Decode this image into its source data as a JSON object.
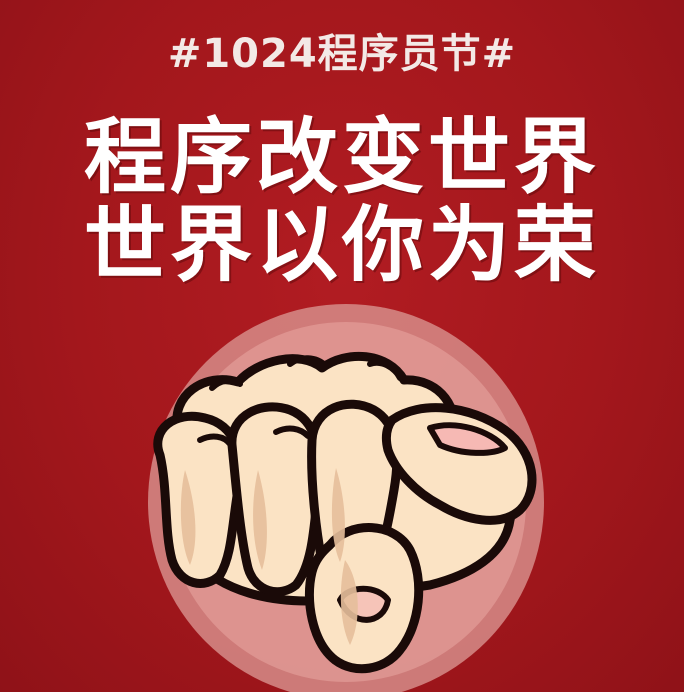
{
  "poster": {
    "hashtag": "#1024程序员节#",
    "headline_line_1": "程序改变世界",
    "headline_line_2": "世界以你为荣"
  },
  "illustration": {
    "icon": "pointing-fist-icon"
  },
  "colors": {
    "background": "#a3171c",
    "circle": "#d9908c",
    "skin": "#fbe3c4",
    "skin_shadow": "#e6bf9c",
    "outline": "#1a0a08",
    "text": "#ffffff"
  }
}
